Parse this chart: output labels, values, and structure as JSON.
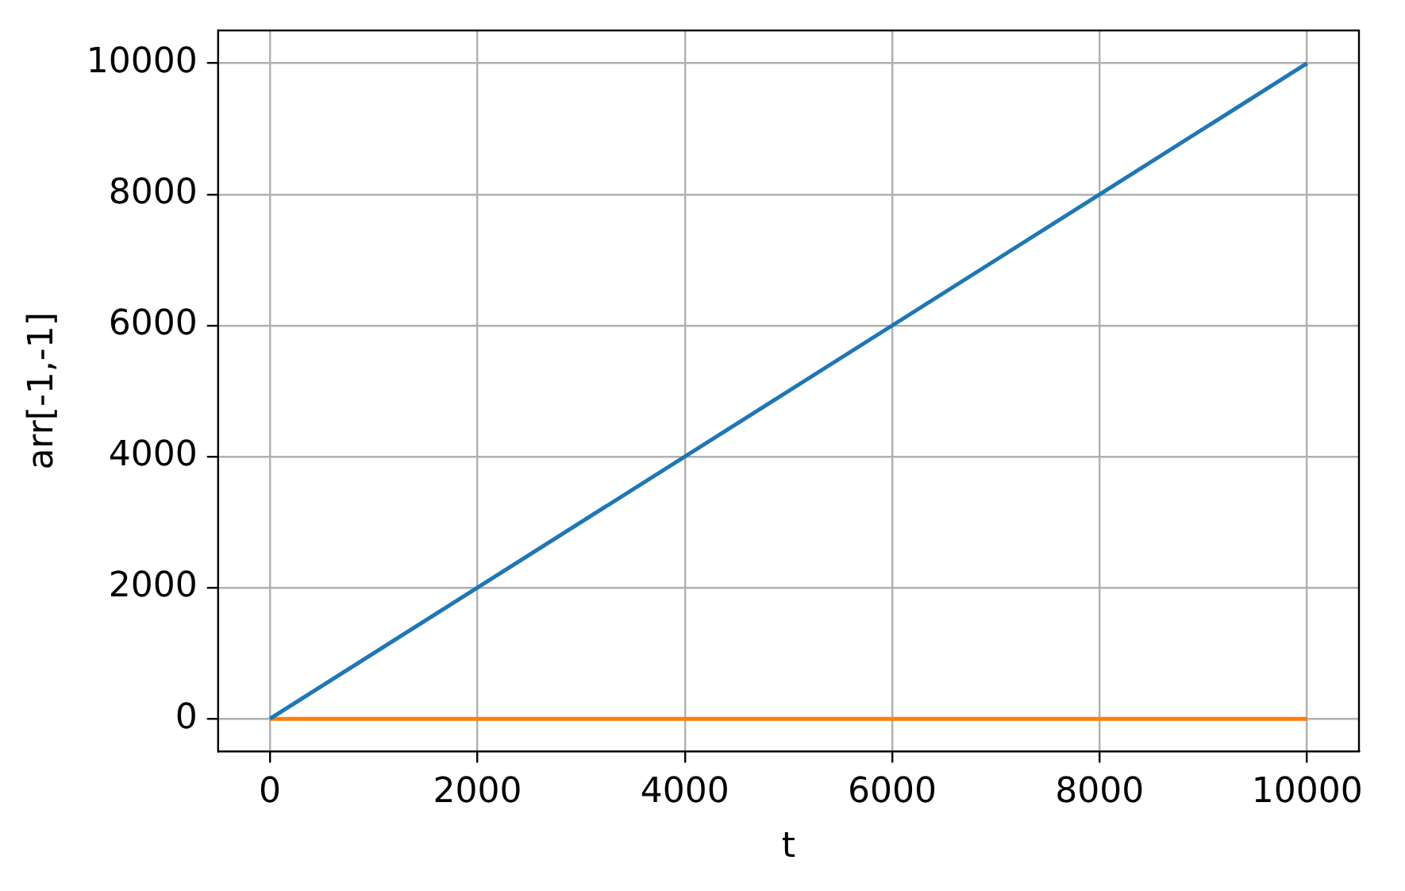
{
  "chart_data": {
    "type": "line",
    "xlabel": "t",
    "ylabel": "arr[-1,-1]",
    "x": [
      0,
      10000
    ],
    "series": [
      {
        "color": "#1f77b4",
        "values": [
          0,
          10000
        ]
      },
      {
        "color": "#ff7f0e",
        "values": [
          0,
          0
        ]
      }
    ],
    "xlim": [
      -500,
      10500
    ],
    "xticks": [
      0,
      2000,
      4000,
      6000,
      8000,
      10000
    ],
    "ylim": [
      -500,
      10500
    ],
    "yticks": [
      0,
      2000,
      4000,
      6000,
      8000,
      10000
    ],
    "grid": true,
    "legend": false,
    "marker": "none",
    "line_style": "solid"
  }
}
